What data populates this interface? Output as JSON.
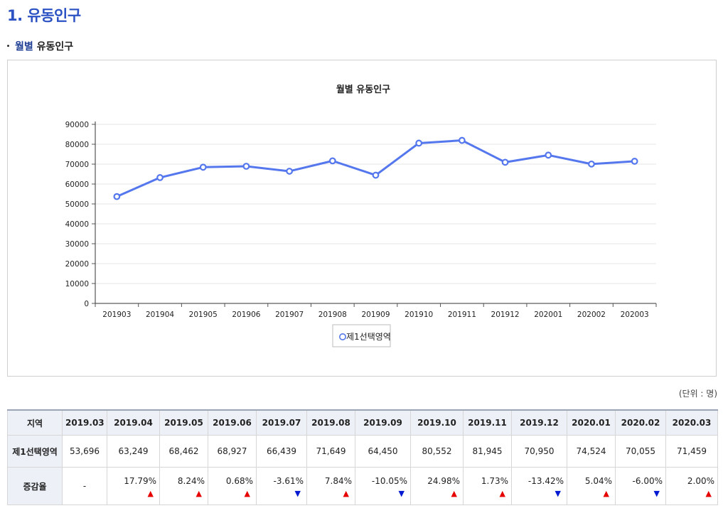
{
  "page": {
    "heading": "1. 유동인구",
    "sub_heading_highlight": "월별",
    "sub_heading_rest": " 유동인구",
    "unit_note": "(단위 : 명)"
  },
  "chart_data": {
    "type": "line",
    "title": "월별 유동인구",
    "categories": [
      "201903",
      "201904",
      "201905",
      "201906",
      "201907",
      "201908",
      "201909",
      "201910",
      "201911",
      "201912",
      "202001",
      "202002",
      "202003"
    ],
    "series": [
      {
        "name": "제1선택영역",
        "values": [
          53696,
          63249,
          68462,
          68927,
          66439,
          71649,
          64450,
          80552,
          81945,
          70950,
          74524,
          70055,
          71459
        ]
      }
    ],
    "ylim": [
      0,
      90000
    ],
    "yticks": [
      0,
      10000,
      20000,
      30000,
      40000,
      50000,
      60000,
      70000,
      80000,
      90000
    ],
    "grid": true,
    "legend": "bottom-center",
    "line_color": "#5577ee"
  },
  "table": {
    "region_header": "지역",
    "months": [
      "2019.03",
      "2019.04",
      "2019.05",
      "2019.06",
      "2019.07",
      "2019.08",
      "2019.09",
      "2019.10",
      "2019.11",
      "2019.12",
      "2020.01",
      "2020.02",
      "2020.03"
    ],
    "pop_row": {
      "label": "제1선택영역",
      "values": [
        "53,696",
        "63,249",
        "68,462",
        "68,927",
        "66,439",
        "71,649",
        "64,450",
        "80,552",
        "81,945",
        "70,950",
        "74,524",
        "70,055",
        "71,459"
      ]
    },
    "rate_row": {
      "label": "증감율",
      "values": [
        "-",
        "17.79%",
        "8.24%",
        "0.68%",
        "-3.61%",
        "7.84%",
        "-10.05%",
        "24.98%",
        "1.73%",
        "-13.42%",
        "5.04%",
        "-6.00%",
        "2.00%"
      ],
      "directions": [
        "none",
        "up",
        "up",
        "up",
        "down",
        "up",
        "down",
        "up",
        "up",
        "down",
        "up",
        "down",
        "up"
      ]
    }
  }
}
